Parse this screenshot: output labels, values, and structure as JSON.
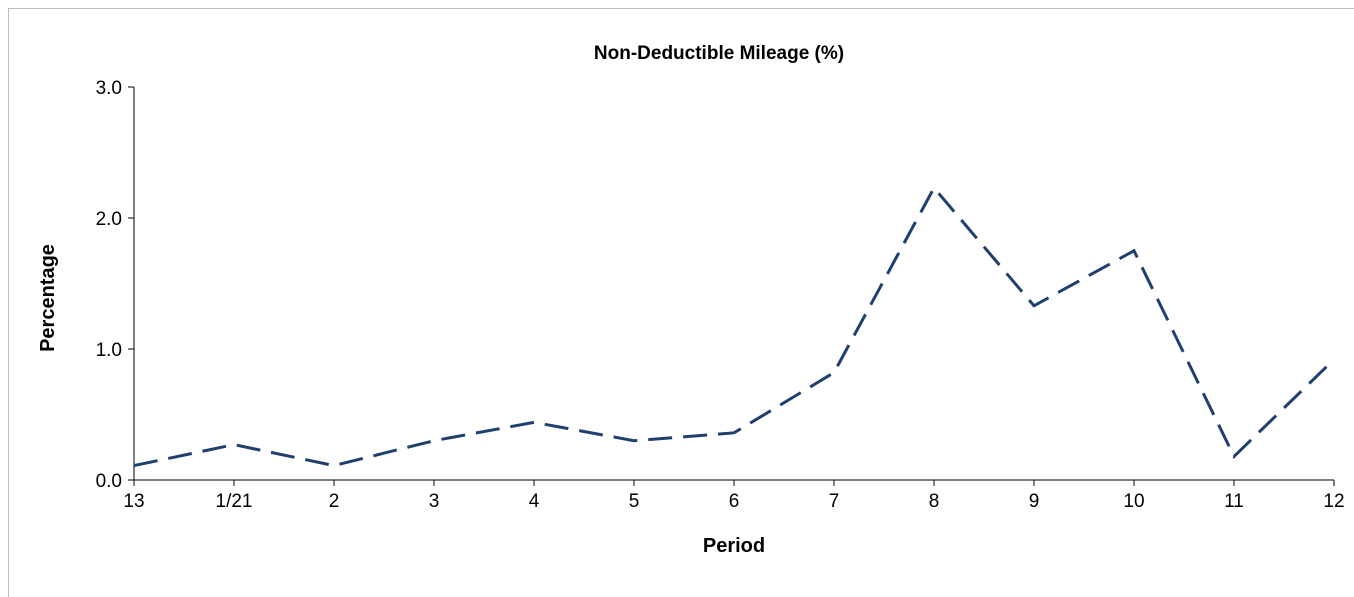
{
  "chart_data": {
    "type": "line",
    "title": "Non-Deductible Mileage (%)",
    "xlabel": "Period",
    "ylabel": "Percentage",
    "categories": [
      "13",
      "1/21",
      "2",
      "3",
      "4",
      "5",
      "6",
      "7",
      "8",
      "9",
      "10",
      "11",
      "12"
    ],
    "series": [
      {
        "values": [
          0.11,
          0.27,
          0.11,
          0.3,
          0.44,
          0.3,
          0.36,
          0.82,
          2.23,
          1.33,
          1.75,
          0.18,
          0.92
        ],
        "color": "#1f3f6e",
        "line_style": "dashed"
      }
    ],
    "ylim": [
      0,
      3.0
    ],
    "yticks": [
      "0.0",
      "1.0",
      "2.0",
      "3.0"
    ],
    "grid": false,
    "legend": "none"
  }
}
